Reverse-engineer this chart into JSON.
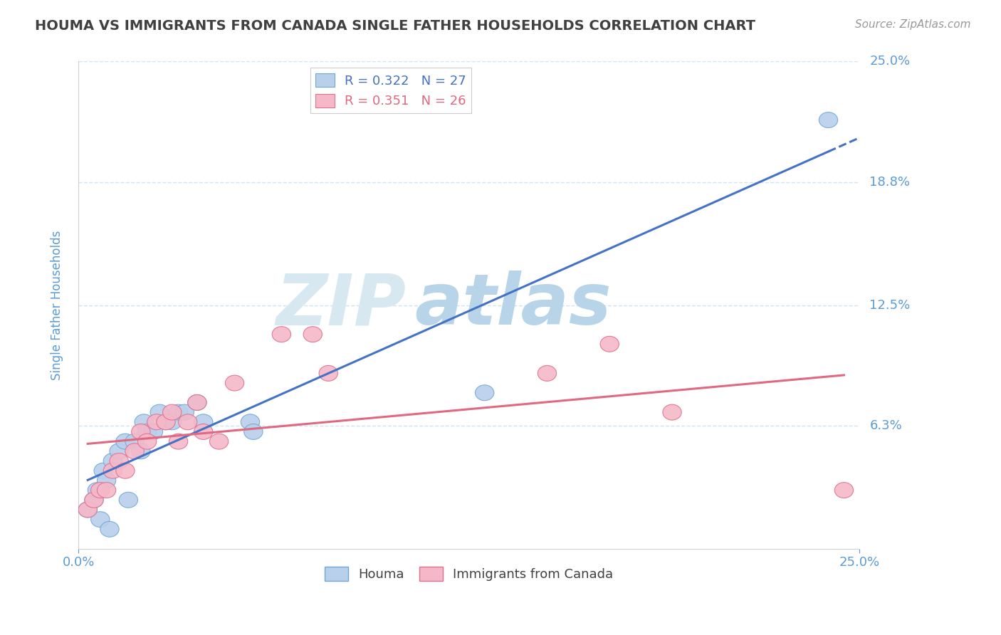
{
  "title": "HOUMA VS IMMIGRANTS FROM CANADA SINGLE FATHER HOUSEHOLDS CORRELATION CHART",
  "source_text": "Source: ZipAtlas.com",
  "ylabel": "Single Father Households",
  "xlim": [
    0.0,
    0.25
  ],
  "ylim": [
    0.0,
    0.25
  ],
  "ytick_vals": [
    0.063,
    0.125,
    0.188,
    0.25
  ],
  "ytick_labels": [
    "6.3%",
    "12.5%",
    "18.8%",
    "25.0%"
  ],
  "legend_blue_text": "R = 0.322   N = 27",
  "legend_pink_text": "R = 0.351   N = 26",
  "legend_bottom_labels": [
    "Houma",
    "Immigrants from Canada"
  ],
  "blue_fill": "#b8d0ea",
  "pink_fill": "#f5b8c8",
  "blue_edge": "#6fa8d8",
  "pink_edge": "#e07090",
  "blue_line": "#4472c4",
  "pink_line": "#e06880",
  "title_color": "#404040",
  "axis_label_color": "#5b9bd5",
  "watermark_zip_color": "#d8e8f0",
  "watermark_atlas_color": "#b8d4e8",
  "grid_color": "#d0e4f4",
  "background_color": "#ffffff",
  "houma_x": [
    0.003,
    0.005,
    0.006,
    0.007,
    0.008,
    0.009,
    0.01,
    0.011,
    0.013,
    0.015,
    0.016,
    0.018,
    0.02,
    0.021,
    0.022,
    0.024,
    0.026,
    0.028,
    0.03,
    0.032,
    0.034,
    0.038,
    0.04,
    0.055,
    0.056,
    0.13,
    0.24
  ],
  "houma_y": [
    0.02,
    0.025,
    0.03,
    0.015,
    0.04,
    0.035,
    0.01,
    0.045,
    0.05,
    0.055,
    0.025,
    0.055,
    0.05,
    0.065,
    0.06,
    0.06,
    0.07,
    0.065,
    0.065,
    0.07,
    0.07,
    0.075,
    0.065,
    0.065,
    0.06,
    0.08,
    0.22
  ],
  "canada_x": [
    0.003,
    0.005,
    0.007,
    0.009,
    0.011,
    0.013,
    0.015,
    0.018,
    0.02,
    0.022,
    0.025,
    0.028,
    0.03,
    0.032,
    0.035,
    0.038,
    0.04,
    0.045,
    0.05,
    0.065,
    0.075,
    0.08,
    0.15,
    0.17,
    0.19,
    0.245
  ],
  "canada_y": [
    0.02,
    0.025,
    0.03,
    0.03,
    0.04,
    0.045,
    0.04,
    0.05,
    0.06,
    0.055,
    0.065,
    0.065,
    0.07,
    0.055,
    0.065,
    0.075,
    0.06,
    0.055,
    0.085,
    0.11,
    0.11,
    0.09,
    0.09,
    0.105,
    0.07,
    0.03
  ]
}
